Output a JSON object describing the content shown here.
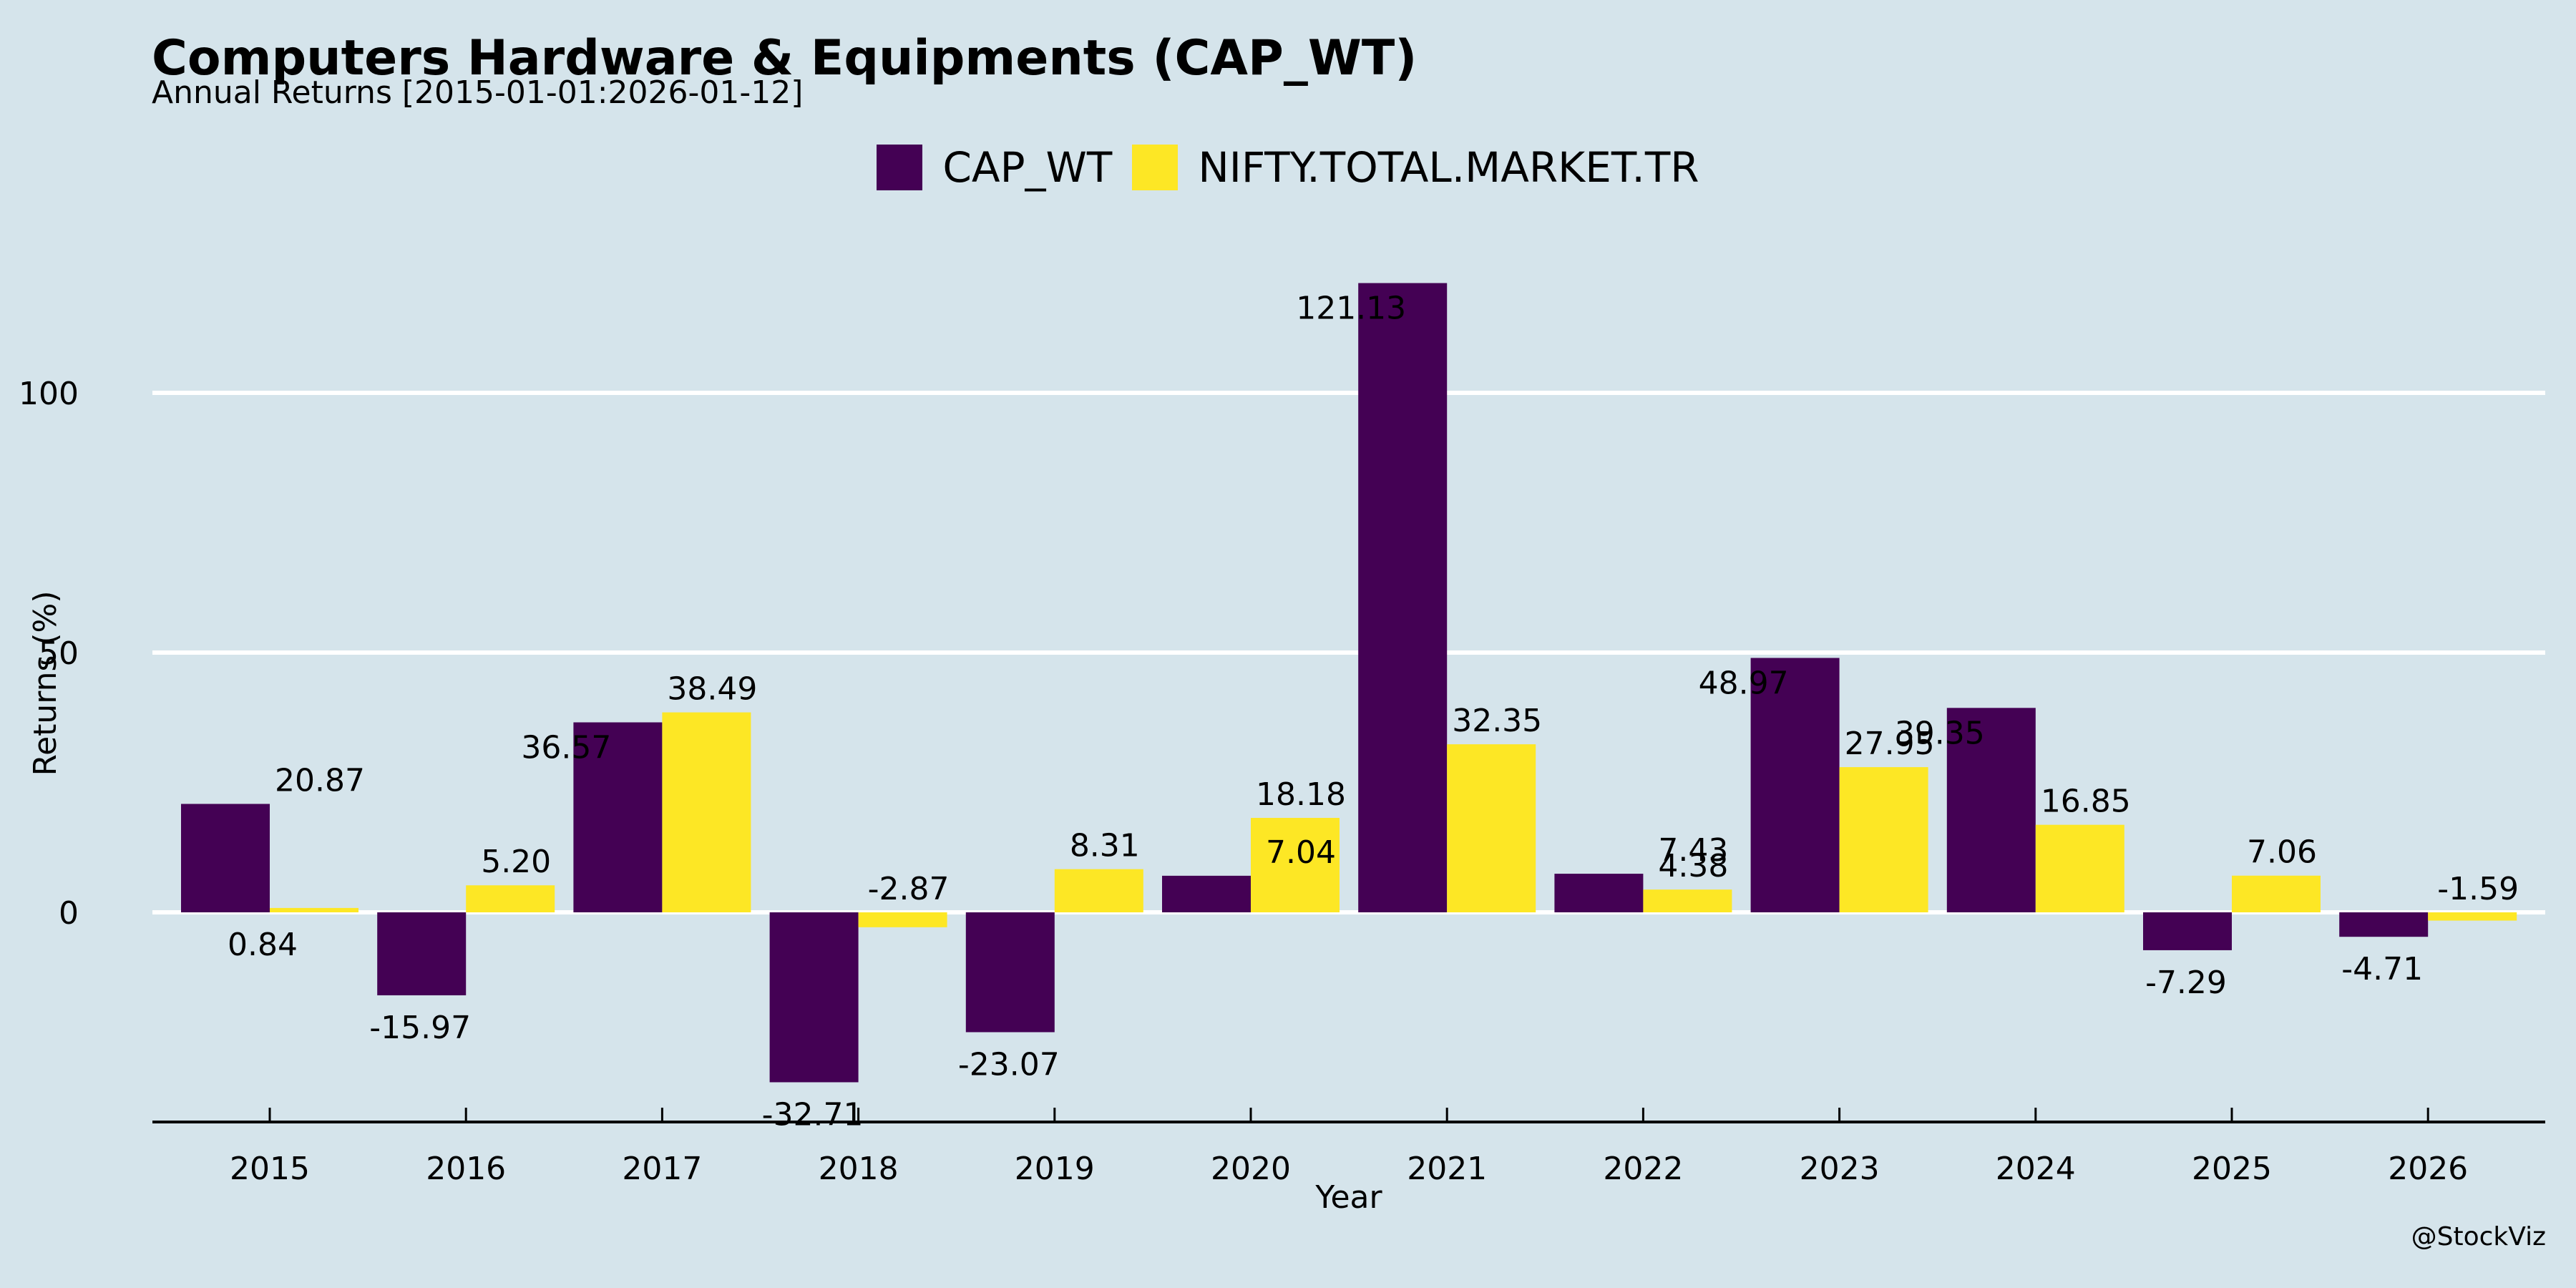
{
  "header": {
    "title": "Computers Hardware & Equipments (CAP_WT)",
    "subtitle": "Annual Returns [2015-01-01:2026-01-12]"
  },
  "watermark": "@StockViz",
  "colors": {
    "background": "#d5e4eb",
    "series1": "#440154",
    "series2": "#fde725",
    "grid": "#ffffff",
    "text": "#000000"
  },
  "chart_data": {
    "type": "bar",
    "title": "Computers Hardware & Equipments (CAP_WT)",
    "subtitle": "Annual Returns [2015-01-01:2026-01-12]",
    "xlabel": "Year",
    "ylabel": "Returns (%)",
    "categories": [
      "2015",
      "2016",
      "2017",
      "2018",
      "2019",
      "2020",
      "2021",
      "2022",
      "2023",
      "2024",
      "2025",
      "2026"
    ],
    "series": [
      {
        "name": "CAP_WT",
        "color": "#440154",
        "values": [
          20.87,
          -15.97,
          36.57,
          -32.71,
          -23.07,
          7.04,
          121.13,
          7.43,
          48.97,
          39.35,
          -7.29,
          -4.71
        ]
      },
      {
        "name": "NIFTY.TOTAL.MARKET.TR",
        "color": "#fde725",
        "values": [
          0.84,
          5.2,
          38.49,
          -2.87,
          8.31,
          18.18,
          32.35,
          4.38,
          27.95,
          16.85,
          7.06,
          -1.59
        ]
      }
    ],
    "labels": {
      "CAP_WT": [
        "20.87",
        "-15.97",
        "36.57",
        "-32.71",
        "-23.07",
        "7.04",
        "121.13",
        "7.43",
        "48.97",
        "39.35",
        "-7.29",
        "-4.71"
      ],
      "NIFTY.TOTAL.MARKET.TR": [
        "0.84",
        "5.20",
        "38.49",
        "-2.87",
        "8.31",
        "18.18",
        "32.35",
        "4.38",
        "27.95",
        "16.85",
        "7.06",
        "-1.59"
      ]
    },
    "yticks": [
      0,
      50,
      100
    ],
    "ytick_labels": [
      "0",
      "50",
      "100"
    ],
    "ylim": [
      -40.3,
      130
    ],
    "grid": true,
    "legend": "top-center"
  }
}
